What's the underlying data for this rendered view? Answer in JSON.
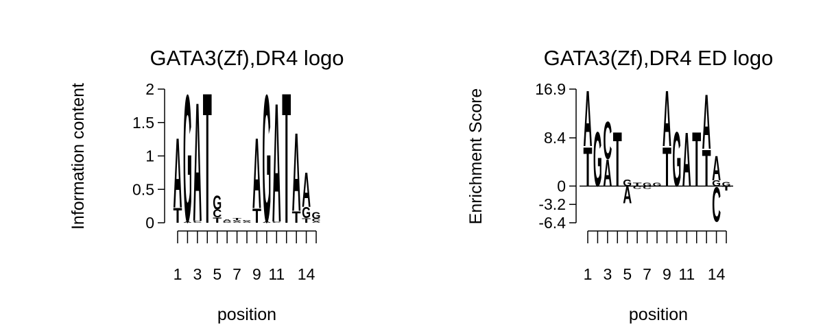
{
  "chart_data": [
    {
      "type": "logo",
      "title": "GATA3(Zf),DR4 logo",
      "xlabel": "position",
      "ylabel": "Information content",
      "categories": [
        "1",
        null,
        "3",
        null,
        "5",
        null,
        "7",
        null,
        "9",
        null,
        "11",
        null,
        null,
        "14",
        null
      ],
      "series": [
        {
          "name": "A",
          "color": "#00e000",
          "values": [
            1.07,
            0.02,
            1.82,
            0,
            0,
            0.03,
            0.02,
            0.02,
            1.08,
            0.02,
            1.82,
            0,
            1.2,
            0.53,
            0.02
          ]
        },
        {
          "name": "C",
          "color": "#0000ee",
          "values": [
            0,
            0,
            0.03,
            0,
            0.12,
            0,
            0,
            0,
            0,
            0,
            0.02,
            0,
            0,
            0,
            0.04
          ]
        },
        {
          "name": "G",
          "color": "#ffa500",
          "values": [
            0,
            1.95,
            0,
            0,
            0.21,
            0.02,
            0.02,
            0.02,
            0,
            1.95,
            0,
            0,
            0,
            0.17,
            0.1
          ]
        },
        {
          "name": "T",
          "color": "#ff0000",
          "values": [
            0.23,
            0,
            0,
            2.0,
            0.08,
            0,
            0.03,
            0,
            0.22,
            0,
            0,
            2.0,
            0.18,
            0.07,
            0
          ]
        }
      ],
      "ylim": [
        0,
        2
      ],
      "yticks": [
        0,
        0.5,
        1,
        1.5,
        2
      ]
    },
    {
      "type": "logo",
      "title": "GATA3(Zf),DR4 ED logo",
      "xlabel": "position",
      "ylabel": "Enrichment Score",
      "categories": [
        "1",
        null,
        "3",
        null,
        "5",
        null,
        "7",
        null,
        "9",
        null,
        "11",
        null,
        null,
        "14",
        null
      ],
      "series": [
        {
          "name": "A",
          "color": "#00e000",
          "values": [
            9.9,
            0,
            4.8,
            0,
            -3.0,
            0,
            0,
            0,
            9.9,
            0,
            9.6,
            0,
            9.8,
            4.4,
            0
          ]
        },
        {
          "name": "C",
          "color": "#0000ee",
          "values": [
            0,
            0,
            6.7,
            0,
            0,
            -0.5,
            -0.5,
            0,
            0,
            0,
            0,
            0,
            0,
            -6.2,
            0
          ]
        },
        {
          "name": "G",
          "color": "#ffa500",
          "values": [
            0,
            9.7,
            0,
            0,
            1.2,
            0,
            0.6,
            0.6,
            0,
            9.7,
            0,
            0,
            0,
            1.0,
            0.7
          ]
        },
        {
          "name": "T",
          "color": "#ff0000",
          "values": [
            7.0,
            0,
            0,
            9.7,
            0,
            0.6,
            0,
            0,
            7.0,
            0,
            0,
            9.7,
            6.5,
            0,
            -0.8
          ]
        }
      ],
      "ylim": [
        -6.4,
        16.9
      ],
      "yticks": [
        -6.4,
        -3.2,
        0,
        8.4,
        16.9
      ]
    }
  ]
}
